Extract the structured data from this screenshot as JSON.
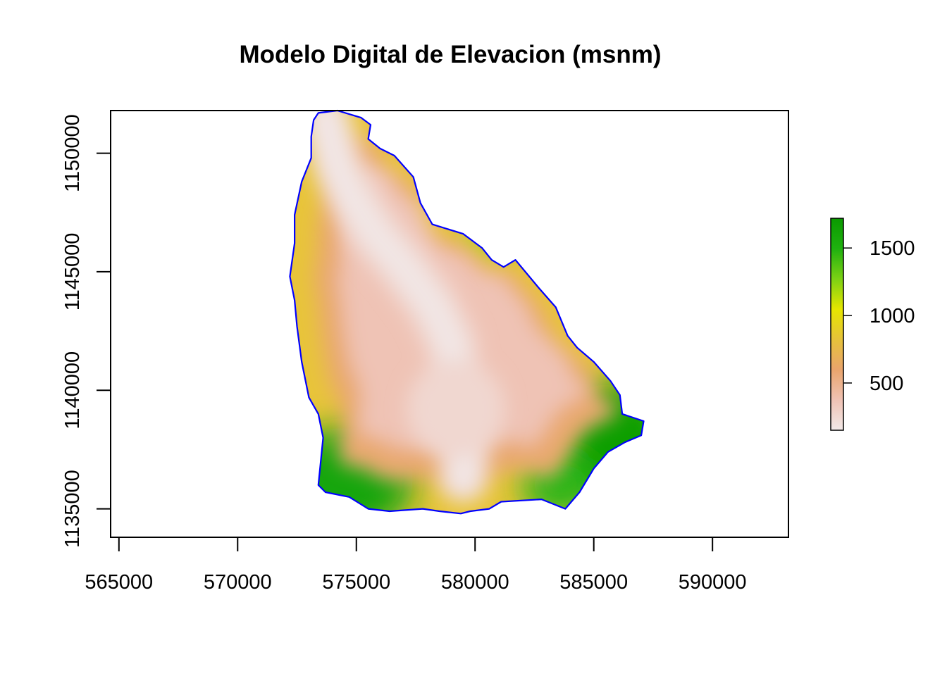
{
  "chart_data": {
    "type": "heatmap",
    "title": "Modelo Digital de Elevacion (msnm)",
    "xlabel": "",
    "ylabel": "",
    "x_ticks": [
      565000,
      570000,
      575000,
      580000,
      585000,
      590000
    ],
    "y_ticks": [
      1135000,
      1140000,
      1145000,
      1150000
    ],
    "xlim": [
      564650,
      593200
    ],
    "ylim": [
      1133800,
      1151800
    ],
    "legend": {
      "position": "right",
      "ticks": [
        500,
        1000,
        1500
      ],
      "range": [
        150,
        1720
      ],
      "colors": [
        "#f2e9e8",
        "#efc2b4",
        "#e9a46c",
        "#e6c23a",
        "#e6e600",
        "#7cd114",
        "#1fb10f",
        "#0a9a00"
      ]
    },
    "boundary_color": "#0000ff",
    "watershed_outline": [
      [
        573400,
        1151700
      ],
      [
        574200,
        1151800
      ],
      [
        575200,
        1151500
      ],
      [
        575600,
        1151200
      ],
      [
        575500,
        1150600
      ],
      [
        576000,
        1150200
      ],
      [
        576600,
        1149900
      ],
      [
        577400,
        1149000
      ],
      [
        577700,
        1147900
      ],
      [
        578200,
        1147000
      ],
      [
        579500,
        1146600
      ],
      [
        580300,
        1146000
      ],
      [
        580700,
        1145500
      ],
      [
        581200,
        1145200
      ],
      [
        581700,
        1145500
      ],
      [
        582700,
        1144300
      ],
      [
        583400,
        1143500
      ],
      [
        583900,
        1142300
      ],
      [
        584300,
        1141800
      ],
      [
        585000,
        1141200
      ],
      [
        585700,
        1140400
      ],
      [
        586100,
        1139800
      ],
      [
        586200,
        1139000
      ],
      [
        587100,
        1138700
      ],
      [
        587000,
        1138100
      ],
      [
        586300,
        1137800
      ],
      [
        585600,
        1137400
      ],
      [
        585000,
        1136700
      ],
      [
        584400,
        1135700
      ],
      [
        583800,
        1135000
      ],
      [
        582800,
        1135400
      ],
      [
        581100,
        1135300
      ],
      [
        580600,
        1135000
      ],
      [
        579800,
        1134900
      ],
      [
        579400,
        1134800
      ],
      [
        578500,
        1134900
      ],
      [
        577800,
        1135000
      ],
      [
        576400,
        1134900
      ],
      [
        575500,
        1135000
      ],
      [
        574700,
        1135500
      ],
      [
        573700,
        1135700
      ],
      [
        573400,
        1136000
      ],
      [
        573500,
        1137000
      ],
      [
        573600,
        1138000
      ],
      [
        573400,
        1139000
      ],
      [
        573000,
        1139700
      ],
      [
        572700,
        1141200
      ],
      [
        572500,
        1142700
      ],
      [
        572400,
        1143800
      ],
      [
        572200,
        1144800
      ],
      [
        572400,
        1146200
      ],
      [
        572400,
        1147400
      ],
      [
        572700,
        1148800
      ],
      [
        573100,
        1149800
      ],
      [
        573100,
        1150700
      ],
      [
        573200,
        1151400
      ]
    ],
    "ridge_line": [
      [
        573700,
        1151500
      ],
      [
        574200,
        1149500
      ],
      [
        574900,
        1148000
      ],
      [
        575800,
        1146600
      ],
      [
        577000,
        1145200
      ],
      [
        578200,
        1143600
      ],
      [
        579000,
        1142000
      ],
      [
        579300,
        1140000
      ],
      [
        579600,
        1138200
      ],
      [
        579500,
        1136300
      ]
    ]
  }
}
